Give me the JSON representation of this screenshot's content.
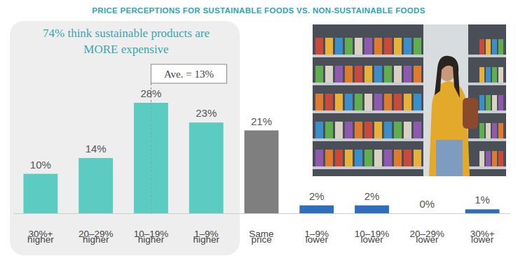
{
  "chart_data": {
    "type": "bar",
    "title": "PRICE PERCEPTIONS FOR SUSTAINABLE FOODS VS. NON-SUSTAINABLE FOODS",
    "annotations": [
      "74% think sustainable products are MORE expensive",
      "Ave. = 13%"
    ],
    "categories": [
      "30%+ higher",
      "20–29% higher",
      "10–19% higher",
      "1–9% higher",
      "Same price",
      "1–9% lower",
      "10–19% lower",
      "20–29% lower",
      "30%+ lower"
    ],
    "values": [
      10,
      14,
      28,
      23,
      21,
      2,
      2,
      0,
      1
    ],
    "value_labels": [
      "10%",
      "14%",
      "28%",
      "23%",
      "21%",
      "2%",
      "2%",
      "0%",
      "1%"
    ],
    "colors": [
      "#5ccbc2",
      "#5ccbc2",
      "#5ccbc2",
      "#5ccbc2",
      "#7f7f7f",
      "#2d6fbd",
      "#2d6fbd",
      "#2d6fbd",
      "#2d6fbd"
    ],
    "data_labels": true,
    "tick_labels": "x"
  }
}
